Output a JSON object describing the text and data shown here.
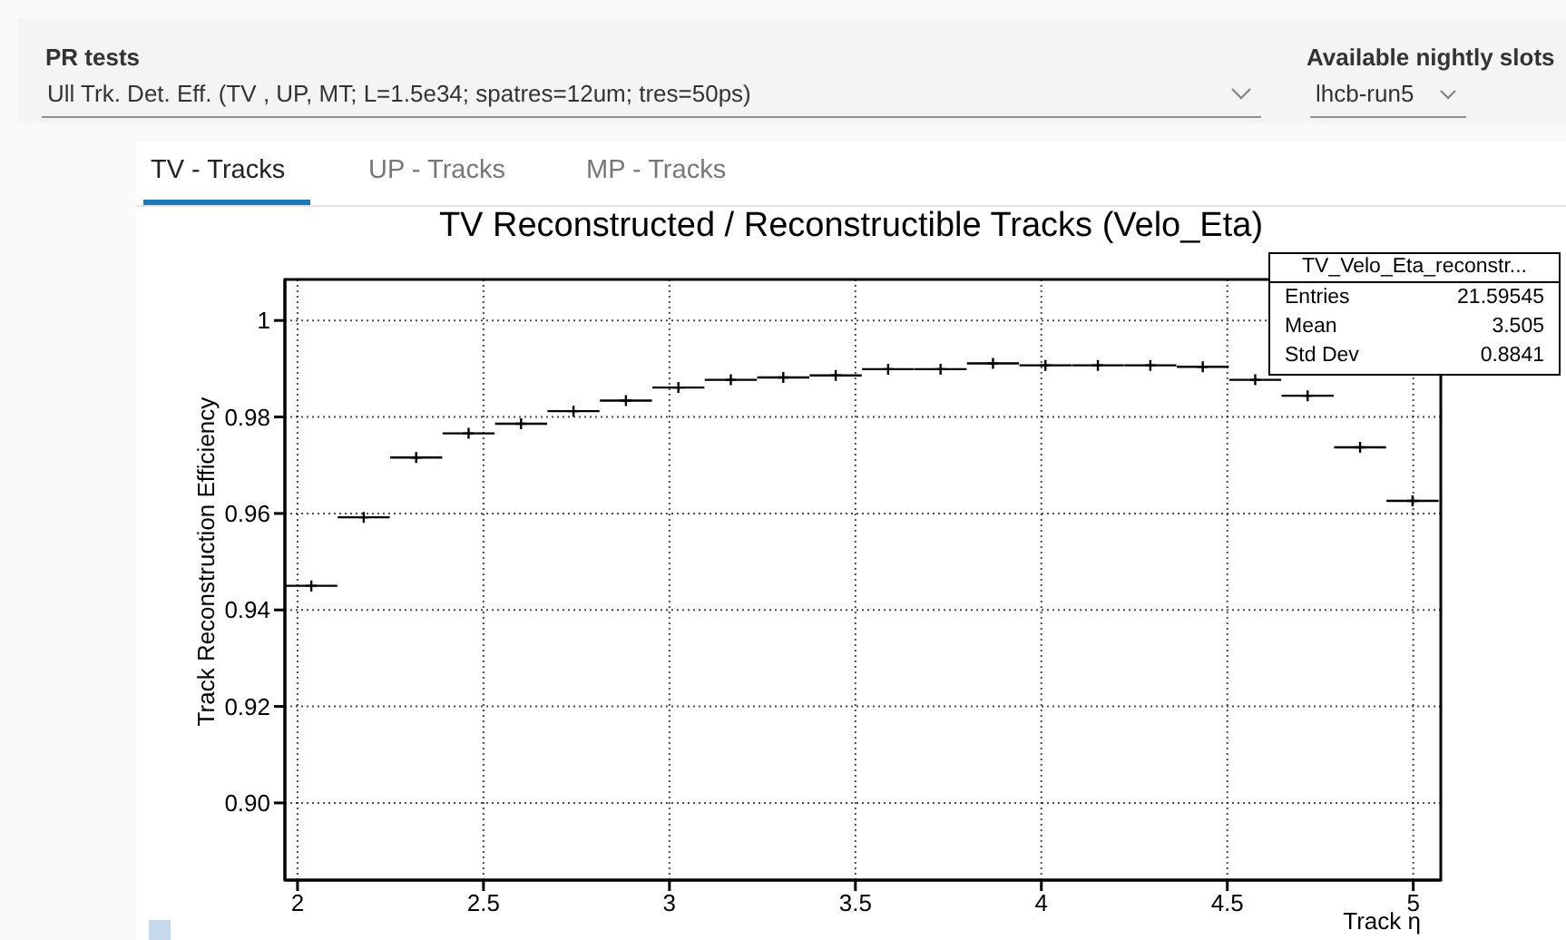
{
  "chart_data": {
    "type": "scatter",
    "title": "TV Reconstructed / Reconstructible Tracks (Velo_Eta)",
    "xlabel": "Track η",
    "ylabel": "Track Reconstruction Efficiency",
    "x": [
      2.037,
      2.178,
      2.319,
      2.46,
      2.601,
      2.742,
      2.883,
      3.024,
      3.165,
      3.306,
      3.447,
      3.588,
      3.729,
      3.87,
      4.011,
      4.152,
      4.293,
      4.434,
      4.575,
      4.716,
      4.857,
      4.998
    ],
    "values": [
      0.945,
      0.9592,
      0.9716,
      0.9766,
      0.9786,
      0.9812,
      0.9834,
      0.9861,
      0.9877,
      0.9882,
      0.9886,
      0.9899,
      0.9899,
      0.9911,
      0.9907,
      0.9907,
      0.9907,
      0.9904,
      0.9877,
      0.9844,
      0.9737,
      0.9626
    ],
    "xerrors": [
      0.07,
      0.07,
      0.07,
      0.07,
      0.07,
      0.07,
      0.07,
      0.07,
      0.07,
      0.07,
      0.07,
      0.07,
      0.07,
      0.07,
      0.07,
      0.07,
      0.07,
      0.07,
      0.07,
      0.07,
      0.07,
      0.07
    ],
    "color": "#000000",
    "marker": "cross",
    "xlim": [
      1.966,
      5.074
    ],
    "ylim": [
      0.884,
      1.0085
    ],
    "xticks": [
      2,
      2.5,
      3,
      3.5,
      4,
      4.5,
      5
    ],
    "yticks": [
      {
        "value": 0.9,
        "label": "0.90"
      },
      0.92,
      0.94,
      0.96,
      0.98,
      1
    ],
    "grid": true,
    "annotations": [
      "PR tests",
      "Ull Trk. Det. Eff. (TV , UP, MT; L=1.5e34; spatres=12um; tres=50ps)",
      "Available nightly slots",
      "lhcb-run5",
      "TV - Tracks",
      "UP - Tracks",
      "MP - Tracks",
      "TV_Velo_Eta_reconstr...",
      "Entries",
      "21.59545",
      "Mean",
      "3.505",
      "Std Dev",
      "0.8841"
    ]
  }
}
